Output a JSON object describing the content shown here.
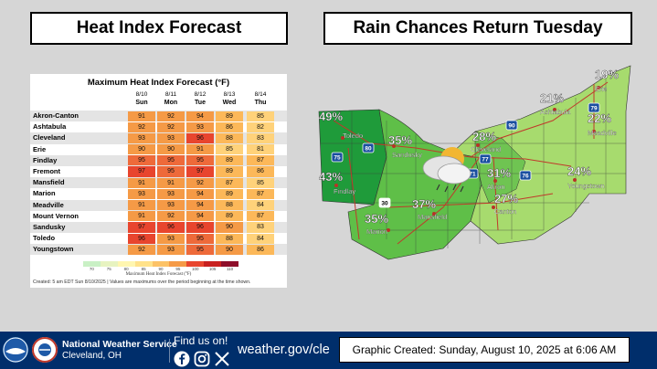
{
  "left_title": "Heat Index Forecast",
  "right_title": "Rain Chances Return Tuesday",
  "table": {
    "title": "Maximum Heat Index Forecast (°F)",
    "dates": [
      "8/10",
      "8/11",
      "8/12",
      "8/13",
      "8/14"
    ],
    "days": [
      "Sun",
      "Mon",
      "Tue",
      "Wed",
      "Thu"
    ],
    "rows": [
      {
        "city": "Akron-Canton",
        "values": [
          91,
          92,
          94,
          89,
          85
        ]
      },
      {
        "city": "Ashtabula",
        "values": [
          92,
          92,
          93,
          86,
          82
        ]
      },
      {
        "city": "Cleveland",
        "values": [
          93,
          93,
          96,
          88,
          83
        ]
      },
      {
        "city": "Erie",
        "values": [
          90,
          90,
          91,
          85,
          81
        ]
      },
      {
        "city": "Findlay",
        "values": [
          95,
          95,
          95,
          89,
          87
        ]
      },
      {
        "city": "Fremont",
        "values": [
          97,
          95,
          97,
          89,
          86
        ]
      },
      {
        "city": "Mansfield",
        "values": [
          91,
          91,
          92,
          87,
          85
        ]
      },
      {
        "city": "Marion",
        "values": [
          93,
          93,
          94,
          89,
          87
        ]
      },
      {
        "city": "Meadville",
        "values": [
          91,
          93,
          94,
          88,
          84
        ]
      },
      {
        "city": "Mount Vernon",
        "values": [
          91,
          92,
          94,
          89,
          87
        ]
      },
      {
        "city": "Sandusky",
        "values": [
          97,
          96,
          96,
          90,
          83
        ]
      },
      {
        "city": "Toledo",
        "values": [
          96,
          93,
          95,
          88,
          84
        ]
      },
      {
        "city": "Youngstown",
        "values": [
          92,
          93,
          95,
          90,
          86
        ]
      }
    ],
    "legend_ticks": [
      "70",
      "75",
      "80",
      "85",
      "90",
      "95",
      "100",
      "105",
      "110"
    ],
    "legend_caption": "Maximum Heat Index Forecast (°F)",
    "footer": "Created: 5 am EDT Sun 8/10/2025  |  Values are maximums over the period beginning at the time shown."
  },
  "map": {
    "labels": [
      {
        "text": "49%",
        "place": "Toledo"
      },
      {
        "text": "43%",
        "place": "Findlay"
      },
      {
        "text": "35%",
        "place": "Sandusky"
      },
      {
        "text": "28%",
        "place": "Cleveland"
      },
      {
        "text": "21%",
        "place": "Ashtabula"
      },
      {
        "text": "19%",
        "place": "Erie"
      },
      {
        "text": "22%",
        "place": "Meadville"
      },
      {
        "text": "31%",
        "place": "Akron"
      },
      {
        "text": "24%",
        "place": "Youngstown"
      },
      {
        "text": "27%",
        "place": "Canton"
      },
      {
        "text": "37%",
        "place": "Mansfield"
      },
      {
        "text": "35%",
        "place": "Marion"
      }
    ],
    "highway_shields": [
      "80",
      "90",
      "75",
      "71",
      "77",
      "76",
      "79",
      "30"
    ]
  },
  "footer": {
    "org": "National Weather Service",
    "office": "Cleveland, OH",
    "find_us": "Find us on!",
    "website": "weather.gov/cle",
    "created": "Graphic Created: Sunday, August 10, 2025 at 6:06 AM",
    "social_icons": [
      "facebook-icon",
      "instagram-icon",
      "x-icon"
    ]
  },
  "colors": {
    "heat_85": "#ffd27a",
    "heat_90": "#f59a46",
    "heat_95": "#e8452e",
    "rain_high": "#1f9b3a",
    "rain_mid": "#5fbf48",
    "rain_low": "#a7db6e",
    "nws_blue": "#002e6b"
  }
}
